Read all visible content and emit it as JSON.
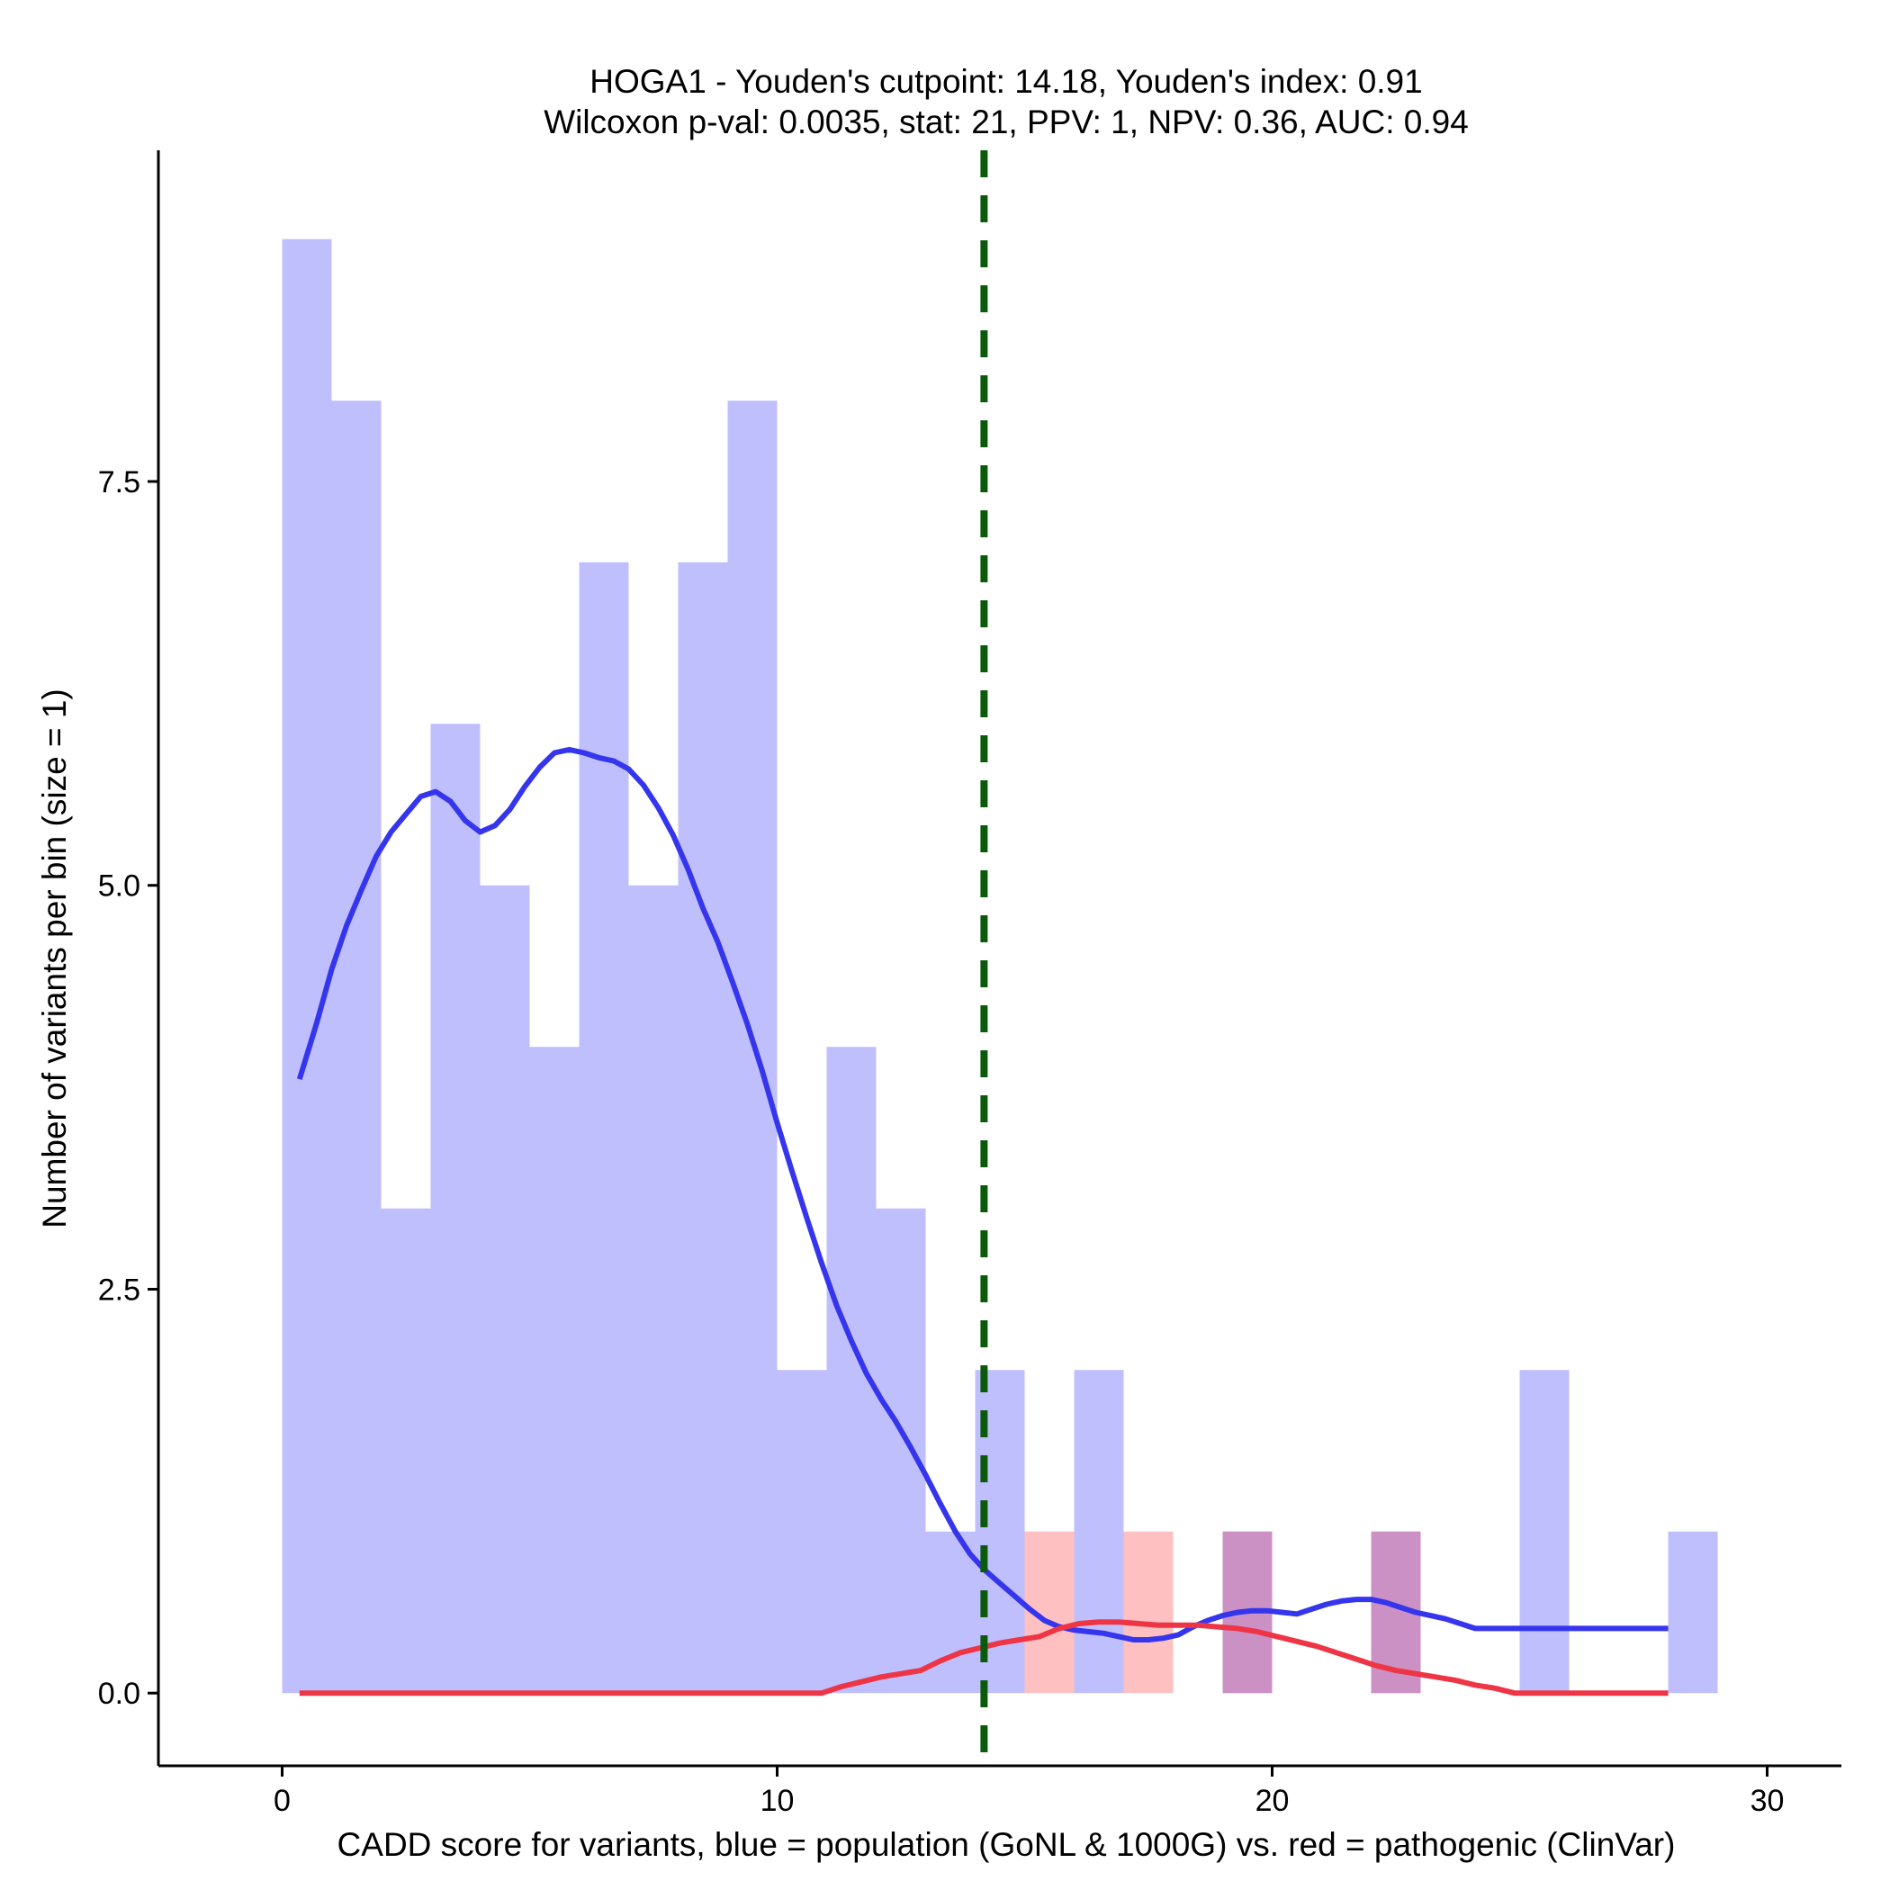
{
  "chart_data": {
    "type": "histogram",
    "title_line1": "HOGA1 - Youden's cutpoint: 14.18, Youden's index: 0.91",
    "title_line2": "Wilcoxon p-val: 0.0035, stat: 21, PPV: 1, NPV: 0.36, AUC: 0.94",
    "xlabel": "CADD score for variants, blue = population (GoNL & 1000G) vs. red = pathogenic (ClinVar)",
    "ylabel": "Number of variants per bin (size = 1)",
    "xlim": [
      -2.5,
      31.5
    ],
    "ylim": [
      -0.45,
      9.55
    ],
    "x_ticks": [
      0,
      10,
      20,
      30
    ],
    "x_tick_labels": [
      "0",
      "10",
      "20",
      "30"
    ],
    "y_ticks": [
      0,
      2.5,
      5,
      7.5
    ],
    "y_tick_labels": [
      "0.0",
      "2.5",
      "5.0",
      "7.5"
    ],
    "bin_size": 1,
    "cutpoint": 14.18,
    "colors": {
      "population_bar": "#bfbffd",
      "pathogenic_bar": "#fec0c0",
      "overlap_bar": "#cb91c5",
      "population_density": "#3535ee",
      "pathogenic_density": "#ee3546",
      "cutpoint_line": "#0b5a0b"
    },
    "series": [
      {
        "name": "population",
        "bins": [
          {
            "x0": 0,
            "count": 9
          },
          {
            "x0": 1,
            "count": 8
          },
          {
            "x0": 2,
            "count": 3
          },
          {
            "x0": 3,
            "count": 6
          },
          {
            "x0": 4,
            "count": 5
          },
          {
            "x0": 5,
            "count": 4
          },
          {
            "x0": 6,
            "count": 7
          },
          {
            "x0": 7,
            "count": 5
          },
          {
            "x0": 8,
            "count": 7
          },
          {
            "x0": 9,
            "count": 8
          },
          {
            "x0": 10,
            "count": 2
          },
          {
            "x0": 11,
            "count": 4
          },
          {
            "x0": 12,
            "count": 3
          },
          {
            "x0": 13,
            "count": 1
          },
          {
            "x0": 14,
            "count": 2
          },
          {
            "x0": 16,
            "count": 2
          },
          {
            "x0": 19,
            "count": 1
          },
          {
            "x0": 22,
            "count": 1
          },
          {
            "x0": 25,
            "count": 2
          },
          {
            "x0": 28,
            "count": 1
          }
        ]
      },
      {
        "name": "pathogenic",
        "bins": [
          {
            "x0": 15,
            "count": 1
          },
          {
            "x0": 17,
            "count": 1
          },
          {
            "x0": 19,
            "count": 1
          },
          {
            "x0": 22,
            "count": 1
          }
        ]
      }
    ],
    "density_population": {
      "x": [
        0.35,
        0.7,
        1.0,
        1.3,
        1.6,
        1.9,
        2.2,
        2.5,
        2.8,
        3.1,
        3.4,
        3.7,
        4.0,
        4.3,
        4.6,
        4.9,
        5.2,
        5.5,
        5.8,
        6.1,
        6.4,
        6.7,
        7.0,
        7.3,
        7.6,
        7.9,
        8.2,
        8.5,
        8.8,
        9.1,
        9.4,
        9.7,
        10.0,
        10.3,
        10.6,
        10.9,
        11.2,
        11.5,
        11.8,
        12.1,
        12.4,
        12.7,
        13.0,
        13.3,
        13.6,
        13.9,
        14.2,
        14.5,
        14.8,
        15.1,
        15.4,
        15.7,
        16.0,
        16.3,
        16.6,
        16.9,
        17.2,
        17.5,
        17.8,
        18.1,
        18.4,
        18.7,
        19.0,
        19.3,
        19.6,
        19.9,
        20.2,
        20.5,
        20.8,
        21.1,
        21.4,
        21.7,
        22.0,
        22.3,
        22.6,
        22.9,
        23.2,
        23.5,
        23.8,
        24.1,
        24.4,
        24.7,
        25.0,
        25.3,
        25.6,
        25.9,
        26.2,
        26.5,
        26.8,
        27.1,
        27.4,
        27.7,
        28.0
      ],
      "y": [
        3.8,
        4.15,
        4.48,
        4.75,
        4.97,
        5.18,
        5.33,
        5.44,
        5.55,
        5.58,
        5.52,
        5.4,
        5.33,
        5.37,
        5.47,
        5.61,
        5.73,
        5.82,
        5.84,
        5.82,
        5.79,
        5.77,
        5.72,
        5.62,
        5.48,
        5.31,
        5.1,
        4.86,
        4.65,
        4.4,
        4.14,
        3.85,
        3.53,
        3.23,
        2.94,
        2.66,
        2.4,
        2.18,
        1.98,
        1.82,
        1.68,
        1.52,
        1.35,
        1.17,
        1.0,
        0.86,
        0.76,
        0.68,
        0.6,
        0.52,
        0.45,
        0.41,
        0.39,
        0.38,
        0.37,
        0.35,
        0.33,
        0.33,
        0.34,
        0.36,
        0.41,
        0.45,
        0.48,
        0.5,
        0.51,
        0.51,
        0.5,
        0.49,
        0.52,
        0.55,
        0.57,
        0.58,
        0.58,
        0.56,
        0.53,
        0.5,
        0.48,
        0.46,
        0.43,
        0.4,
        0.4,
        0.4,
        0.4,
        0.4,
        0.4,
        0.4,
        0.4,
        0.4,
        0.4,
        0.4,
        0.4,
        0.4,
        0.4
      ]
    },
    "density_pathogenic": {
      "x": [
        0.35,
        2.0,
        4.0,
        6.0,
        8.0,
        10.0,
        10.9,
        11.3,
        11.7,
        12.1,
        12.5,
        12.9,
        13.3,
        13.7,
        14.1,
        14.5,
        14.9,
        15.3,
        15.7,
        16.1,
        16.5,
        16.9,
        17.3,
        17.7,
        18.1,
        18.5,
        18.9,
        19.3,
        19.7,
        20.1,
        20.5,
        20.9,
        21.3,
        21.7,
        22.1,
        22.5,
        22.9,
        23.3,
        23.7,
        24.1,
        24.5,
        24.9,
        25.3,
        25.7,
        26.1,
        26.5,
        26.9,
        27.3,
        27.7,
        28.0
      ],
      "y": [
        0,
        0,
        0,
        0,
        0,
        0,
        0.0,
        0.04,
        0.07,
        0.1,
        0.12,
        0.14,
        0.2,
        0.25,
        0.28,
        0.31,
        0.33,
        0.35,
        0.4,
        0.43,
        0.44,
        0.44,
        0.43,
        0.42,
        0.42,
        0.42,
        0.41,
        0.4,
        0.38,
        0.35,
        0.32,
        0.29,
        0.25,
        0.21,
        0.17,
        0.14,
        0.12,
        0.1,
        0.08,
        0.05,
        0.03,
        0.0,
        0.0,
        0.0,
        0.0,
        0.0,
        0.0,
        0.0,
        0.0,
        0.0
      ]
    }
  }
}
